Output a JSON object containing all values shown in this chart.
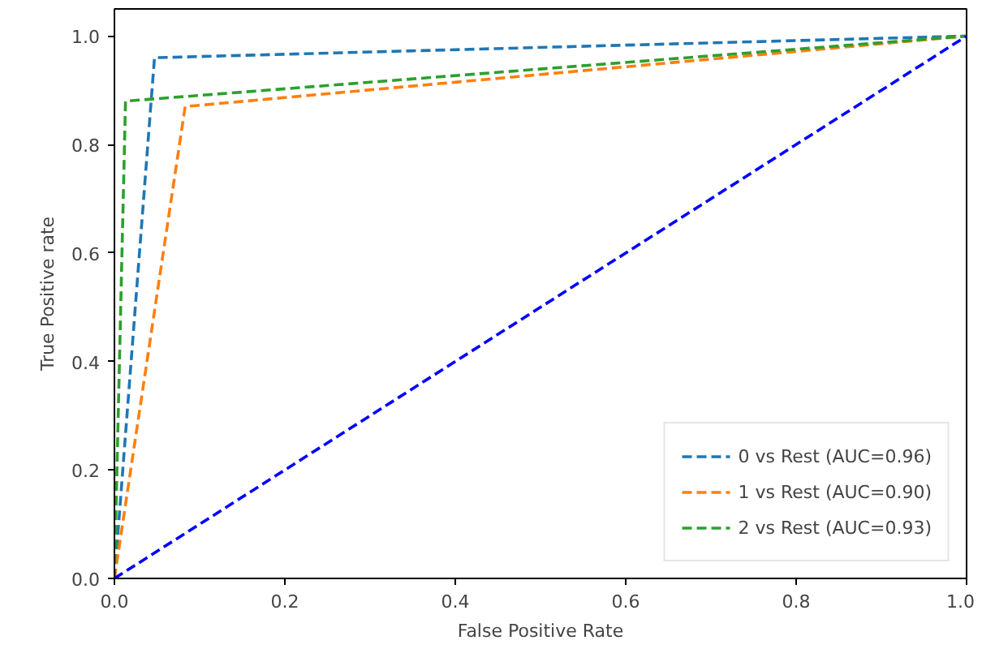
{
  "chart_data": {
    "type": "line",
    "xlabel": "False Positive Rate",
    "ylabel": "True Positive rate",
    "xlim": [
      0,
      1
    ],
    "ylim": [
      0,
      1.05
    ],
    "xticks": [
      {
        "value": 0,
        "label": "0.0"
      },
      0.2,
      0.4,
      0.6,
      0.8,
      {
        "value": 1,
        "label": "1.0"
      }
    ],
    "yticks": [
      {
        "value": 0,
        "label": "0.0"
      },
      0.2,
      0.4,
      0.6,
      0.8,
      {
        "value": 1,
        "label": "1.0"
      }
    ],
    "line_style": "dashed",
    "legend": "bottom right",
    "grid": false,
    "series": [
      {
        "name": "0 vs Rest (AUC=0.96)",
        "color": "#1f77b4",
        "x": [
          0,
          0.047,
          1
        ],
        "values": [
          0,
          0.96,
          1
        ]
      },
      {
        "name": "1 vs Rest (AUC=0.90)",
        "color": "#ff7f0e",
        "x": [
          0,
          0.083,
          1
        ],
        "values": [
          0,
          0.87,
          1
        ]
      },
      {
        "name": "2 vs Rest (AUC=0.93)",
        "color": "#2ca02c",
        "x": [
          0,
          0.013,
          1
        ],
        "values": [
          0,
          0.88,
          1
        ]
      },
      {
        "color": "#0000ff",
        "x": [
          0,
          1
        ],
        "values": [
          0,
          1
        ]
      }
    ]
  }
}
